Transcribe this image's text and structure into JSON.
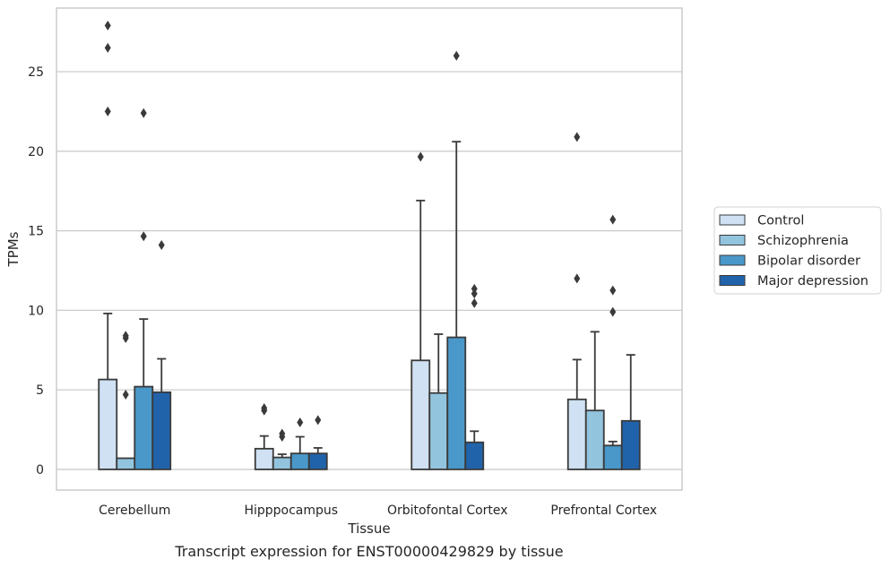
{
  "chart_data": {
    "type": "bar",
    "xlabel": "Tissue",
    "ylabel": "TPMs",
    "caption": "Transcript expression for ENST00000429829 by tissue",
    "ylim": [
      -1.3,
      29
    ],
    "yticks": [
      0,
      5,
      10,
      15,
      20,
      25
    ],
    "grid": true,
    "legend_position": "right",
    "categories": [
      "Cerebellum",
      "Hipppocampus",
      "Orbitofontal Cortex",
      "Prefrontal Cortex"
    ],
    "series": [
      {
        "name": "Control",
        "color": "#cfe1f2",
        "values": [
          5.65,
          1.3,
          6.85,
          4.4
        ],
        "error_upper": [
          9.8,
          2.1,
          16.9,
          6.9
        ],
        "outliers": [
          [
            22.5,
            26.5,
            27.9
          ],
          [
            3.7,
            3.85
          ],
          [
            19.65
          ],
          [
            12.0,
            20.9
          ]
        ]
      },
      {
        "name": "Schizophrenia",
        "color": "#93c4de",
        "values": [
          0.7,
          0.75,
          4.8,
          3.7
        ],
        "error_upper": [
          0.7,
          0.95,
          8.5,
          8.65
        ],
        "outliers": [
          [
            4.7,
            8.25,
            8.4
          ],
          [
            2.05,
            2.25
          ],
          [],
          []
        ]
      },
      {
        "name": "Bipolar disorder",
        "color": "#4a98c9",
        "values": [
          5.2,
          1.0,
          8.3,
          1.5
        ],
        "error_upper": [
          9.45,
          2.05,
          20.6,
          1.75
        ],
        "outliers": [
          [
            14.65,
            22.4
          ],
          [
            2.95
          ],
          [
            26.0
          ],
          [
            9.9,
            11.25,
            15.7
          ]
        ]
      },
      {
        "name": "Major depression",
        "color": "#2163aa",
        "values": [
          4.85,
          1.0,
          1.7,
          3.05
        ],
        "error_upper": [
          6.95,
          1.35,
          2.4,
          7.2
        ],
        "outliers": [
          [
            14.1
          ],
          [
            3.1
          ],
          [
            10.45,
            11.05,
            11.35
          ],
          []
        ]
      }
    ]
  }
}
